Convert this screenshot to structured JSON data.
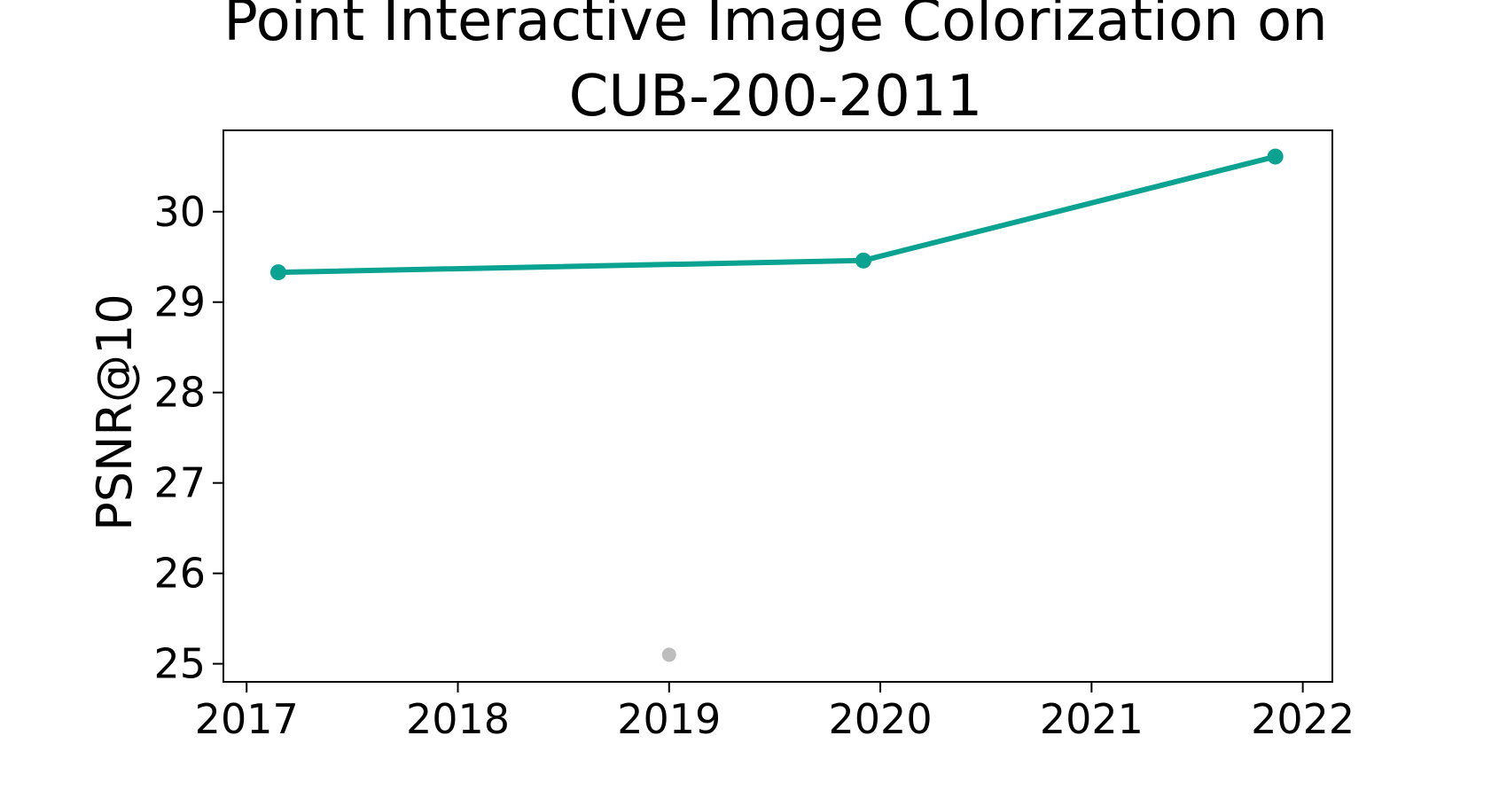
{
  "chart_data": {
    "type": "line",
    "title_lines": [
      "Point Interactive Image Colorization on",
      "CUB-200-2011"
    ],
    "xlabel": "",
    "ylabel": "PSNR@10",
    "xlim": [
      2016.89,
      2022.14
    ],
    "ylim": [
      24.8,
      30.9
    ],
    "x_ticks": [
      2017,
      2018,
      2019,
      2020,
      2021,
      2022
    ],
    "y_ticks": [
      25,
      26,
      27,
      28,
      29,
      30
    ],
    "grid": false,
    "series": [
      {
        "color": "#0aa391",
        "points": [
          {
            "x": 2017.15,
            "y": 29.33
          },
          {
            "x": 2019.92,
            "y": 29.46
          },
          {
            "x": 2021.87,
            "y": 30.61
          }
        ]
      }
    ],
    "other_points": [
      {
        "color": "#bdbdbd",
        "x": 2019.0,
        "y": 25.1
      }
    ]
  }
}
